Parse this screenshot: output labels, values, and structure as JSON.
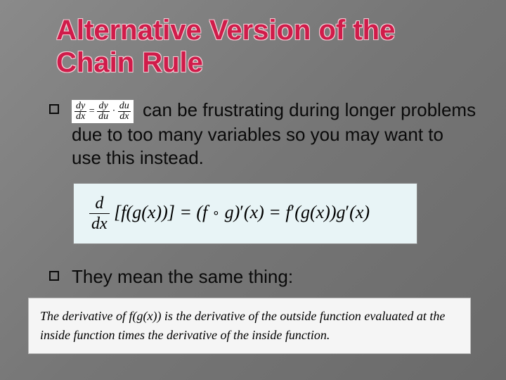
{
  "title": "Alternative Version of the Chain Rule",
  "bullet1": {
    "leibniz": {
      "lhs_num": "dy",
      "lhs_den": "dx",
      "mid_num": "dy",
      "mid_den": "du",
      "rhs_num": "du",
      "rhs_den": "dx"
    },
    "text": " can be frustrating during longer problems due to too many variables so you may want to use this instead."
  },
  "formula": {
    "frac_num": "d",
    "frac_den": "dx",
    "text": "[f(g(x))] = (f ∘ g)′(x) = f′(g(x))g′(x)"
  },
  "bullet2_lead": "They",
  "bullet2_rest": " mean the same thing:",
  "description": "The derivative of f(g(x)) is the derivative of the outside function evaluated at the inside function times the derivative of the inside function.",
  "colors": {
    "title_color": "#d01c4a",
    "title_outline": "#f5d0d8",
    "body_text": "#0a0a0a",
    "formula_bg": "#e8f4f6",
    "desc_bg": "#f5f5f5",
    "slide_bg_top": "#8a8a8a",
    "slide_bg_bottom": "#6a6a6a"
  },
  "typography": {
    "title_fontsize": 40,
    "body_fontsize": 26,
    "formula_fontsize": 26,
    "desc_fontsize": 18,
    "title_font": "Arial",
    "math_font": "Times New Roman"
  },
  "layout": {
    "slide_width": 720,
    "slide_height": 540,
    "formula_box_width": 490
  }
}
